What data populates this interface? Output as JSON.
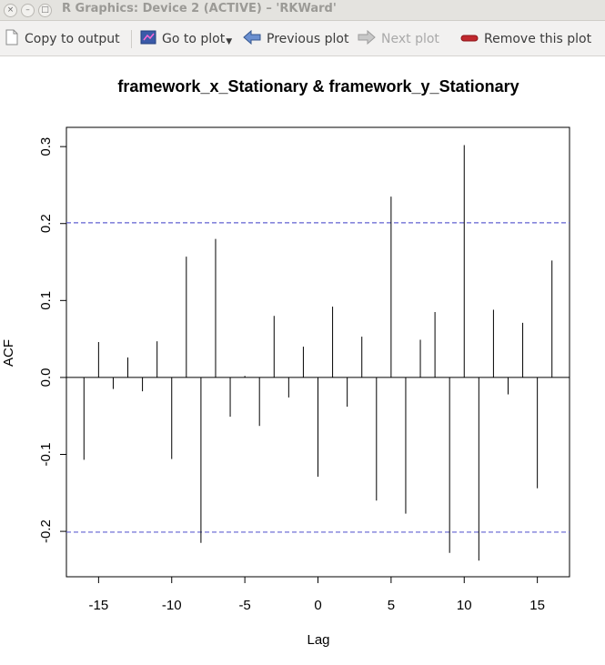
{
  "window": {
    "title": "R Graphics: Device 2 (ACTIVE) – 'RKWard'"
  },
  "toolbar": {
    "copy_label": "Copy to output",
    "goto_label": "Go to plot",
    "prev_label": "Previous plot",
    "next_label": "Next plot",
    "remove_label": "Remove this plot"
  },
  "colors": {
    "ci_line": "#6060d0",
    "bar": "#000000",
    "remove_icon": "#c0282d",
    "goto_icon": "#3a5aa8"
  },
  "chart_data": {
    "type": "bar",
    "title": "framework_x_Stationary & framework_y_Stationary",
    "xlabel": "Lag",
    "ylabel": "ACF",
    "xlim": [
      -17.2,
      17.2
    ],
    "ylim": [
      -0.259,
      0.325
    ],
    "xticks": [
      -15,
      -10,
      -5,
      0,
      5,
      10,
      15
    ],
    "xtick_labels": [
      "-15",
      "-10",
      "-5",
      "0",
      "5",
      "10",
      "15"
    ],
    "yticks": [
      -0.2,
      -0.1,
      0.0,
      0.1,
      0.2,
      0.3
    ],
    "ytick_labels": [
      "-0.2",
      "-0.1",
      "0.0",
      "0.1",
      "0.2",
      "0.3"
    ],
    "ci_lines": [
      0.201,
      -0.201
    ],
    "grid": false,
    "lags": [
      -16,
      -15,
      -14,
      -13,
      -12,
      -11,
      -10,
      -9,
      -8,
      -7,
      -6,
      -5,
      -4,
      -3,
      -2,
      -1,
      0,
      1,
      2,
      3,
      4,
      5,
      6,
      7,
      8,
      9,
      10,
      11,
      12,
      13,
      14,
      15,
      16
    ],
    "values": [
      -0.107,
      0.046,
      -0.015,
      0.026,
      -0.018,
      0.047,
      -0.106,
      0.157,
      -0.215,
      0.18,
      -0.051,
      0.002,
      -0.063,
      0.08,
      -0.026,
      0.04,
      -0.129,
      0.092,
      -0.038,
      0.053,
      -0.16,
      0.235,
      -0.177,
      0.049,
      0.085,
      -0.228,
      0.302,
      -0.238,
      0.088,
      -0.022,
      0.071,
      -0.144,
      0.152
    ]
  }
}
